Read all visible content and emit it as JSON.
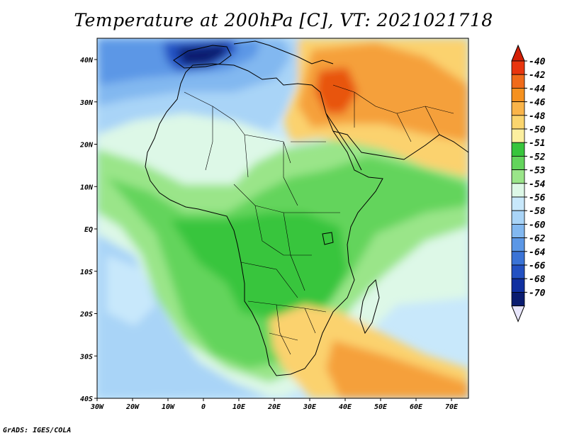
{
  "title": "Temperature at 200hPa [C], VT: 2021021718",
  "credit": "GrADS: IGES/COLA",
  "axes": {
    "lat_labels": [
      "40N",
      "30N",
      "20N",
      "10N",
      "EQ",
      "10S",
      "20S",
      "30S",
      "40S"
    ],
    "lon_labels": [
      "30W",
      "20W",
      "10W",
      "0",
      "10E",
      "20E",
      "30E",
      "40E",
      "50E",
      "60E",
      "70E"
    ]
  },
  "colorbar": {
    "levels": [
      "-40",
      "-42",
      "-44",
      "-46",
      "-48",
      "-50",
      "-51",
      "-52",
      "-53",
      "-54",
      "-56",
      "-58",
      "-60",
      "-62",
      "-64",
      "-66",
      "-68",
      "-70"
    ],
    "colors": [
      "#e8350e",
      "#f06b1a",
      "#f5911f",
      "#fab449",
      "#fbd56e",
      "#fcef9f",
      "#37c53c",
      "#63d45c",
      "#9ae589",
      "#ddf8e7",
      "#c8e8fb",
      "#a9d4f7",
      "#82b8f0",
      "#5b97e6",
      "#3a73d6",
      "#2351c2",
      "#1030a0",
      "#0a1c70"
    ],
    "top_color": "#d31f06",
    "bottom_color": "#e8e6fc"
  },
  "field_colors": {
    "warm_core": "#e8550f",
    "warm": "#f5a03a",
    "warm_light": "#fbd26e",
    "pale_yellow": "#fcef9f",
    "green_dark": "#37c53c",
    "green": "#63d45c",
    "green_light": "#9ae589",
    "mint": "#ddf8e7",
    "sky": "#c8e8fb",
    "blue_light": "#a9d4f7",
    "blue": "#82b8f0",
    "blue_mid": "#5b97e6",
    "blue_deep": "#2351c2",
    "navy": "#0a1c70"
  }
}
